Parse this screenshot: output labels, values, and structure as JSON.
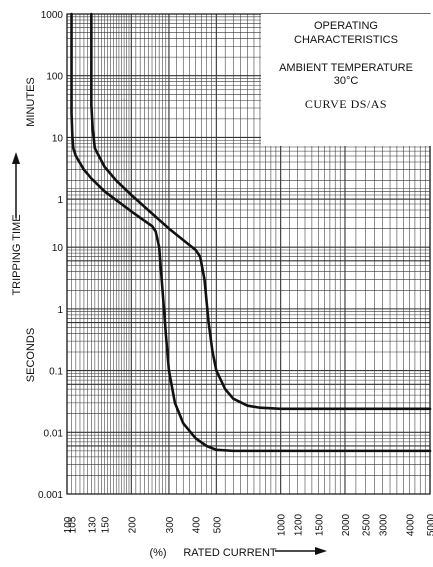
{
  "chart_data": {
    "type": "line",
    "x_scale": "log",
    "y_scale": "log",
    "x_ticks": [
      "100",
      "105",
      "130",
      "150",
      "200",
      "300",
      "400",
      "500",
      "1000",
      "1200",
      "1500",
      "2000",
      "2500",
      "3000",
      "4000",
      "5000"
    ],
    "y_ticks_minutes": [
      "1000",
      "100",
      "10",
      "1"
    ],
    "y_ticks_seconds": [
      "10",
      "1",
      "0.1",
      "0.01",
      "0.001"
    ],
    "xlabel_prefix": "(%)",
    "xlabel": "RATED CURRENT",
    "ylabel_main": "TRIPPING TIME",
    "ylabel_minutes": "MINUTES",
    "ylabel_seconds": "SECONDS",
    "annotation": {
      "line1": "OPERATING",
      "line2": "CHARACTERISTICS",
      "line3": "AMBIENT TEMPERATURE",
      "line4": "30°C",
      "line5": "CURVE DS/AS"
    },
    "series": [
      {
        "values_pct_vs_seconds": [
          [
            105,
            60000
          ],
          [
            105,
            1500
          ],
          [
            106,
            600
          ],
          [
            107,
            400
          ],
          [
            110,
            300
          ],
          [
            120,
            180
          ],
          [
            130,
            130
          ],
          [
            150,
            80
          ],
          [
            200,
            38
          ],
          [
            250,
            22
          ],
          [
            260,
            18
          ],
          [
            270,
            10
          ],
          [
            280,
            2
          ],
          [
            290,
            0.4
          ],
          [
            300,
            0.1
          ],
          [
            320,
            0.03
          ],
          [
            350,
            0.014
          ],
          [
            400,
            0.008
          ],
          [
            450,
            0.006
          ],
          [
            500,
            0.0052
          ],
          [
            600,
            0.005
          ],
          [
            1000,
            0.005
          ],
          [
            5000,
            0.005
          ]
        ]
      },
      {
        "values_pct_vs_seconds": [
          [
            130,
            60000
          ],
          [
            130,
            2000
          ],
          [
            132,
            800
          ],
          [
            135,
            400
          ],
          [
            150,
            200
          ],
          [
            170,
            120
          ],
          [
            200,
            70
          ],
          [
            300,
            20
          ],
          [
            400,
            9
          ],
          [
            420,
            7
          ],
          [
            440,
            3
          ],
          [
            460,
            0.6
          ],
          [
            480,
            0.2
          ],
          [
            500,
            0.1
          ],
          [
            550,
            0.05
          ],
          [
            600,
            0.035
          ],
          [
            700,
            0.027
          ],
          [
            800,
            0.025
          ],
          [
            1000,
            0.024
          ],
          [
            5000,
            0.024
          ]
        ]
      }
    ]
  }
}
